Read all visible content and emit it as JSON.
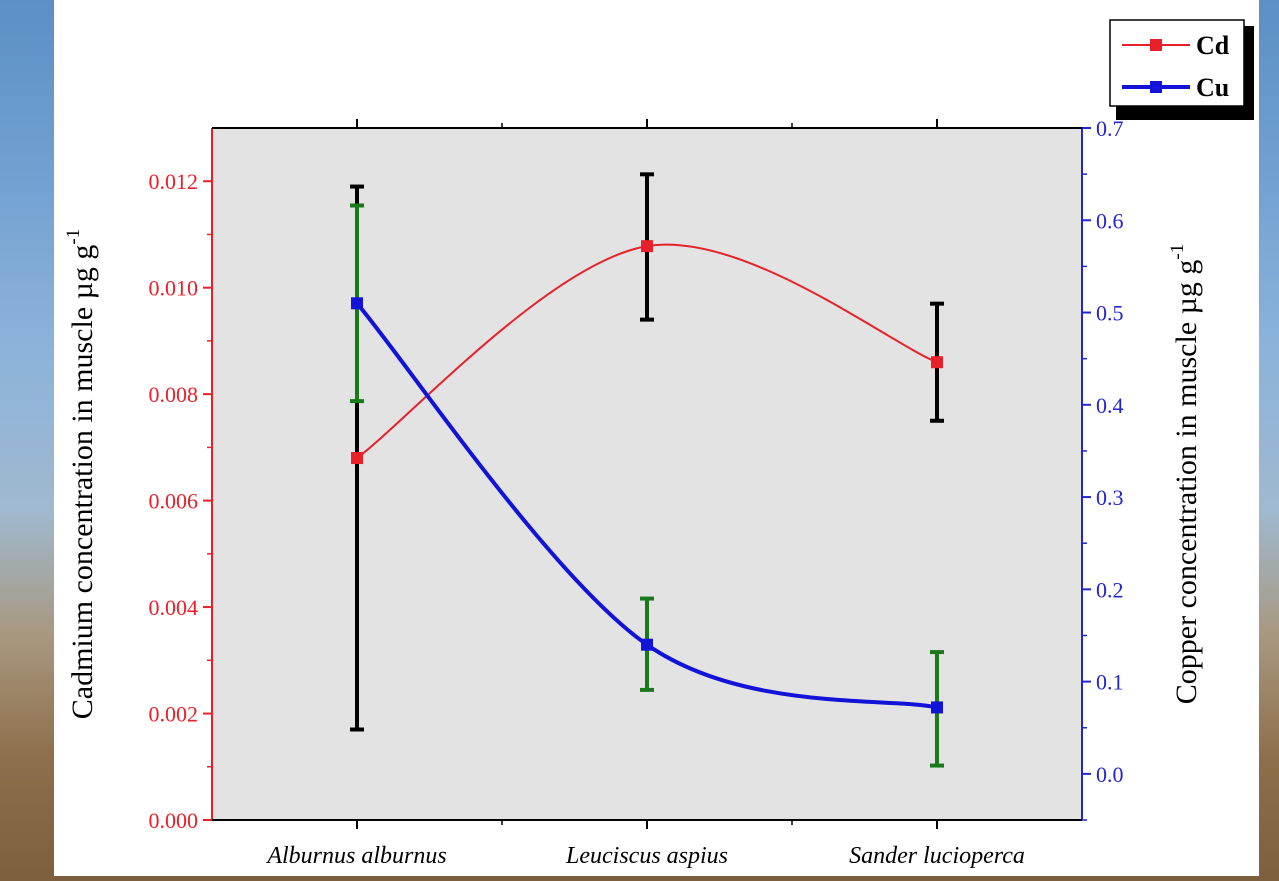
{
  "chart_data": {
    "type": "line",
    "title": "",
    "categories": [
      "Alburnus alburnus",
      "Leuciscus aspius",
      "Sander lucioperca"
    ],
    "ylabel": "Cadmium concentration in muscle µg g",
    "ylabel_sup": "-1",
    "y2label": "Copper concentration in muscle µg g",
    "y2label_sup": "-1",
    "ylim": [
      0,
      0.013
    ],
    "y2lim": [
      -0.05,
      0.7
    ],
    "y_ticks": [
      "0.000",
      "0.002",
      "0.004",
      "0.006",
      "0.008",
      "0.010",
      "0.012"
    ],
    "y2_ticks": [
      "0.0",
      "0.1",
      "0.2",
      "0.3",
      "0.4",
      "0.5",
      "0.6",
      "0.7"
    ],
    "grid": false,
    "legend_position": "top-right",
    "series": [
      {
        "name": "Cd",
        "axis": "left",
        "color": "#e8202a",
        "errorbar_color": "#000000",
        "values": [
          0.0068,
          0.01078,
          0.0086
        ],
        "err_low": [
          0.0017,
          0.0094,
          0.0075
        ],
        "err_high": [
          0.0119,
          0.01213,
          0.0097
        ]
      },
      {
        "name": "Cu",
        "axis": "right",
        "color": "#1212d8",
        "errorbar_color": "#1a7a1a",
        "values": [
          0.51,
          0.14,
          0.072
        ],
        "err_low": [
          0.404,
          0.091,
          0.009
        ],
        "err_high": [
          0.616,
          0.19,
          0.132
        ]
      }
    ],
    "colors": {
      "plot_background": "#e3e3e3",
      "left_axis": "#e8202a",
      "right_axis": "#2424d0",
      "axis": "#000000"
    }
  }
}
